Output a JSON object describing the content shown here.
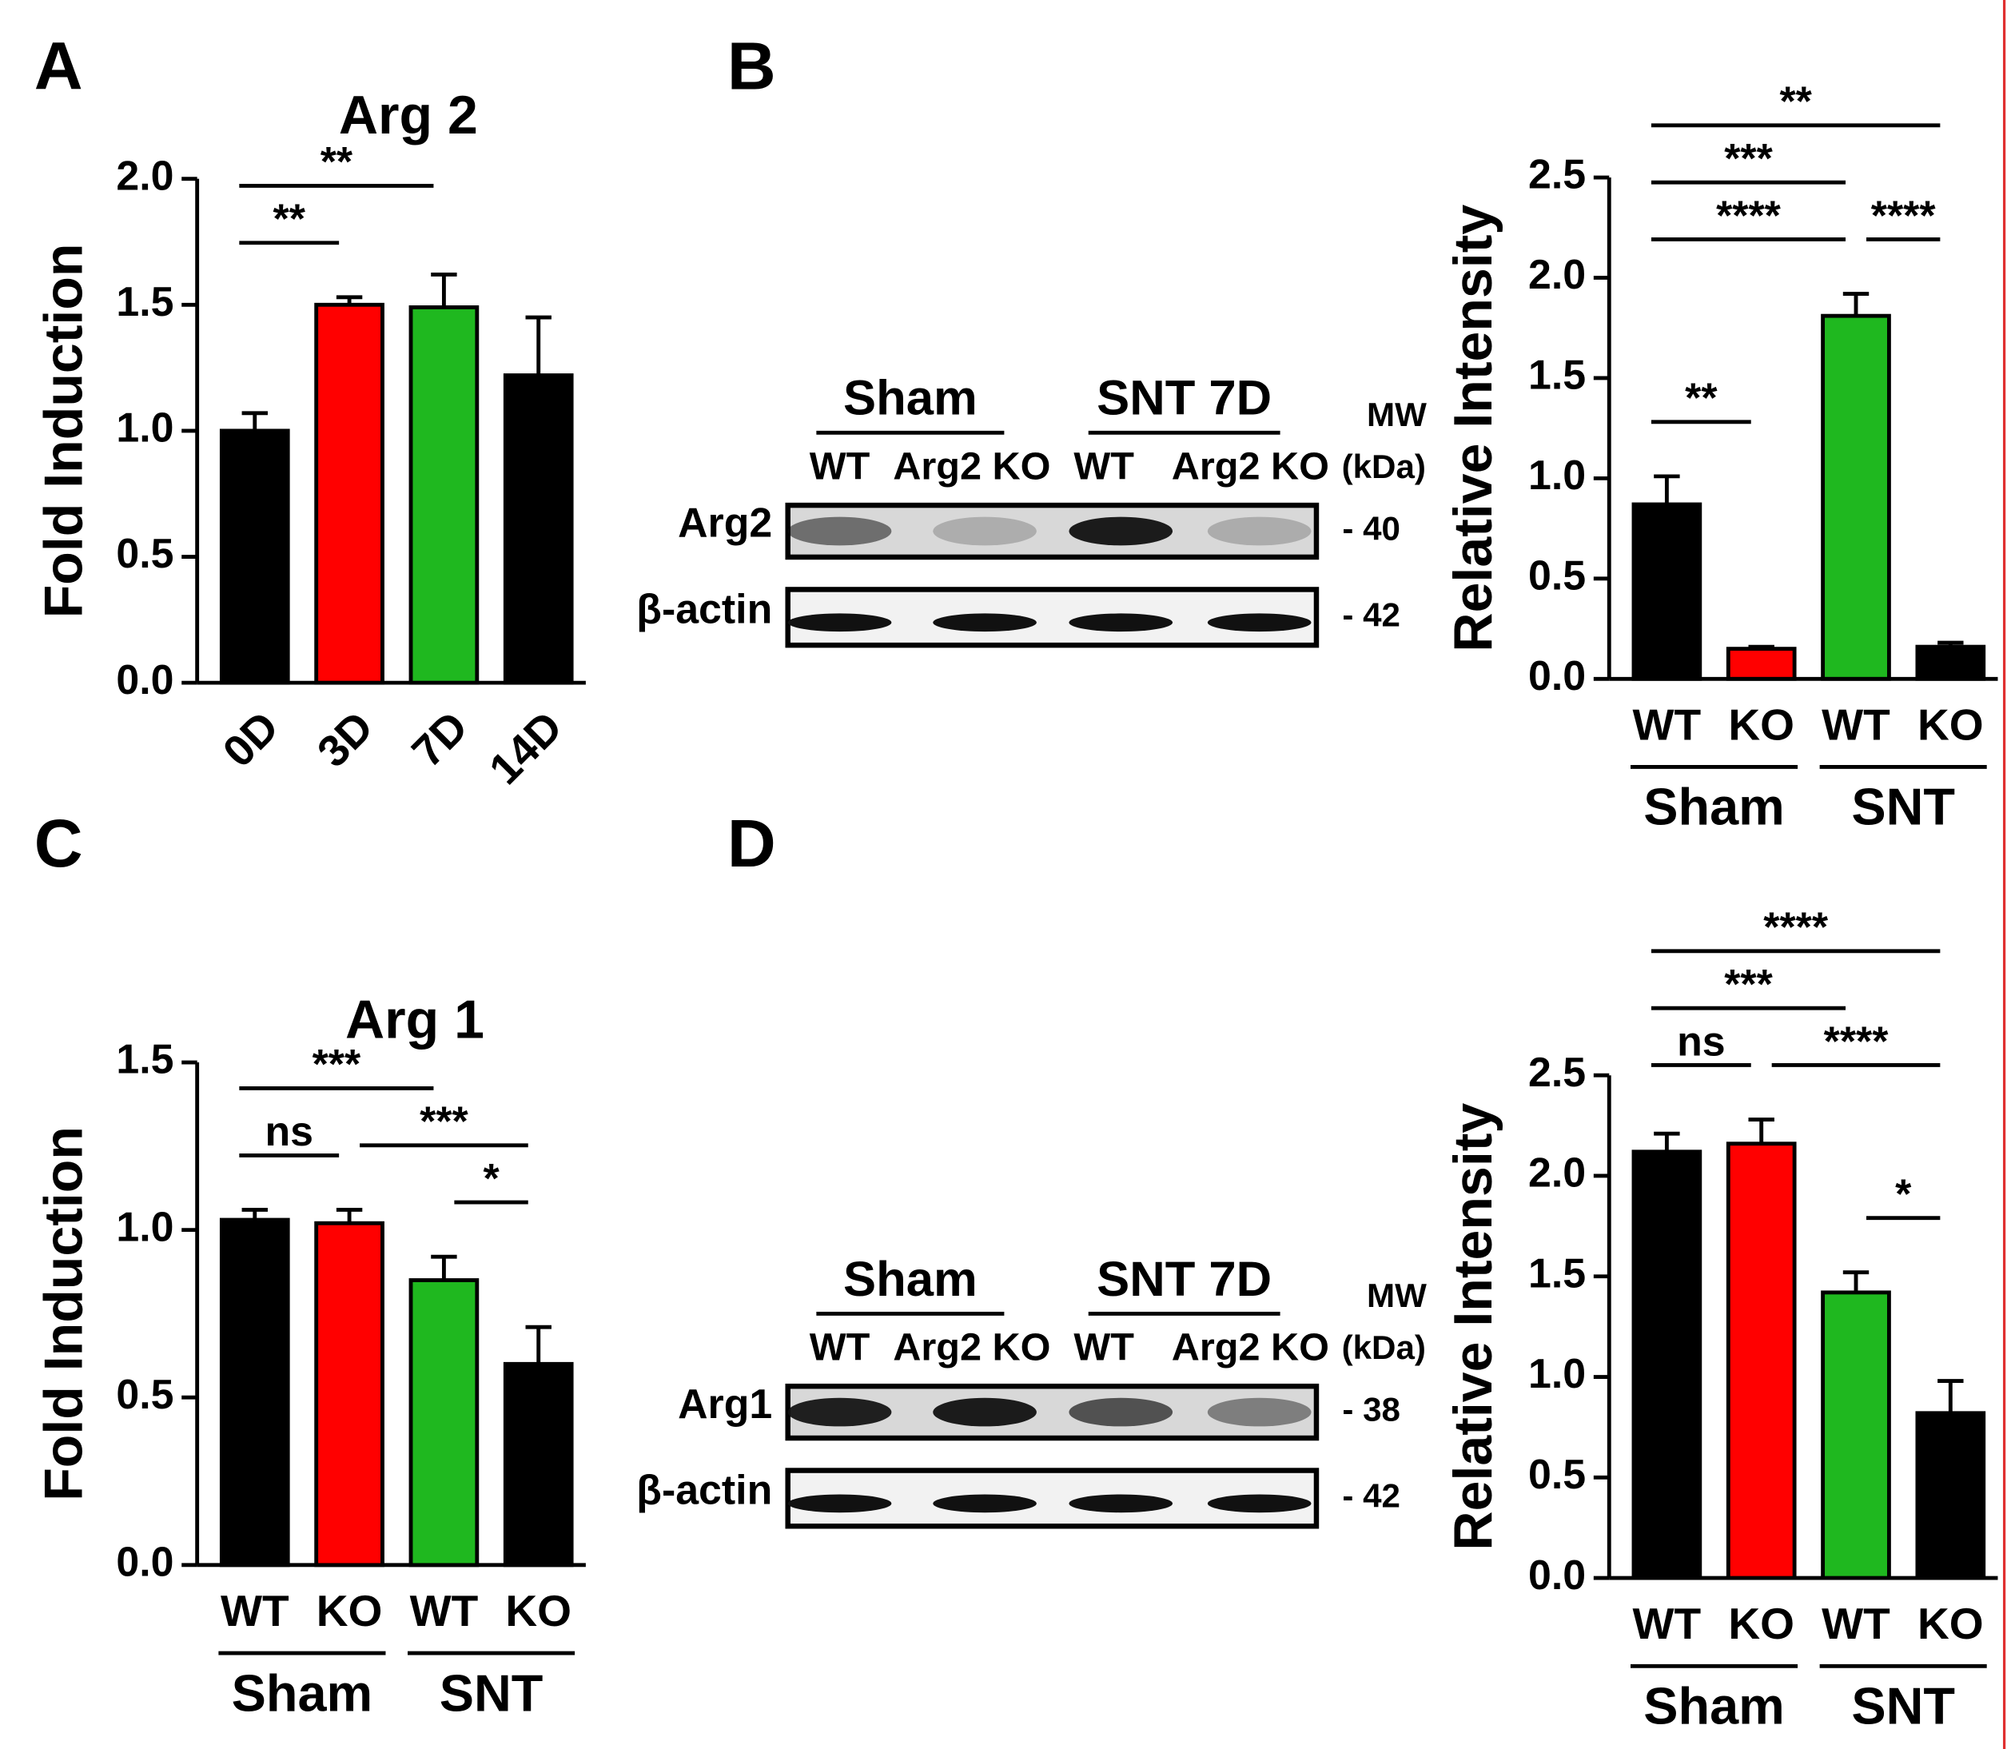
{
  "chart_data": [
    {
      "type": "bar",
      "panel": "A",
      "title": "Arg 2",
      "ylabel": "Fold Induction",
      "categories": [
        "0D",
        "3D",
        "7D",
        "14D"
      ],
      "xtick_rotation": -45,
      "values": [
        1.0,
        1.5,
        1.49,
        1.22
      ],
      "errors": [
        0.07,
        0.03,
        0.13,
        0.23
      ],
      "colors": [
        "#000000",
        "#ff0000",
        "#1fb81f",
        "#000000"
      ],
      "ylim": [
        0,
        2
      ],
      "yticks": [
        {
          "value": 0,
          "label": "0.0"
        },
        0.5,
        {
          "value": 1,
          "label": "1.0"
        },
        1.5,
        {
          "value": 2,
          "label": "2.0"
        }
      ],
      "comparisons": [
        {
          "label": "**",
          "bars": [
            0,
            1
          ]
        },
        {
          "label": "**",
          "bars": [
            0,
            2
          ]
        }
      ]
    },
    {
      "type": "bar",
      "panel": "B",
      "ylabel": "Relative Intensity",
      "categories": [
        "WT",
        "KO",
        "WT",
        "KO"
      ],
      "groups": [
        {
          "label": "Sham",
          "bars": [
            0,
            1
          ]
        },
        {
          "label": "SNT",
          "bars": [
            2,
            3
          ]
        }
      ],
      "values": [
        0.87,
        0.15,
        1.81,
        0.16
      ],
      "errors": [
        0.14,
        0.01,
        0.11,
        0.02
      ],
      "colors": [
        "#000000",
        "#ff0000",
        "#1fb81f",
        "#000000"
      ],
      "ylim": [
        0,
        2.5
      ],
      "yticks": [
        {
          "value": 0,
          "label": "0.0"
        },
        0.5,
        {
          "value": 1,
          "label": "1.0"
        },
        1.5,
        {
          "value": 2,
          "label": "2.0"
        },
        2.5
      ],
      "comparisons": [
        {
          "label": "**",
          "bars": [
            0,
            1
          ]
        },
        {
          "label": "****",
          "bars": [
            0,
            2
          ]
        },
        {
          "label": "****",
          "bars": [
            2,
            3
          ]
        },
        {
          "label": "***",
          "bars": [
            0,
            2
          ]
        },
        {
          "label": "**",
          "bars": [
            0,
            3
          ]
        }
      ],
      "blot": {
        "groups": [
          "Sham",
          "SNT 7D"
        ],
        "lanes": [
          "WT",
          "Arg2 KO",
          "WT",
          "Arg2 KO"
        ],
        "mw_header": [
          "MW",
          "(kDa)"
        ],
        "rows": [
          {
            "label": "Arg2",
            "mw": "- 40"
          },
          {
            "label": "β-actin",
            "mw": "- 42"
          }
        ]
      }
    },
    {
      "type": "bar",
      "panel": "C",
      "title": "Arg 1",
      "ylabel": "Fold Induction",
      "categories": [
        "WT",
        "KO",
        "WT",
        "KO"
      ],
      "groups": [
        {
          "label": "Sham",
          "bars": [
            0,
            1
          ]
        },
        {
          "label": "SNT",
          "bars": [
            2,
            3
          ]
        }
      ],
      "values": [
        1.03,
        1.02,
        0.85,
        0.6
      ],
      "errors": [
        0.03,
        0.04,
        0.07,
        0.11
      ],
      "colors": [
        "#000000",
        "#ff0000",
        "#1fb81f",
        "#000000"
      ],
      "ylim": [
        0,
        1.5
      ],
      "yticks": [
        {
          "value": 0,
          "label": "0.0"
        },
        0.5,
        {
          "value": 1,
          "label": "1.0"
        },
        1.5
      ],
      "comparisons": [
        {
          "label": "ns",
          "bars": [
            0,
            1
          ]
        },
        {
          "label": "*",
          "bars": [
            2,
            3
          ]
        },
        {
          "label": "***",
          "bars": [
            1,
            3
          ]
        },
        {
          "label": "***",
          "bars": [
            0,
            2
          ]
        }
      ]
    },
    {
      "type": "bar",
      "panel": "D",
      "ylabel": "Relative Intensity",
      "categories": [
        "WT",
        "KO",
        "WT",
        "KO"
      ],
      "groups": [
        {
          "label": "Sham",
          "bars": [
            0,
            1
          ]
        },
        {
          "label": "SNT",
          "bars": [
            2,
            3
          ]
        }
      ],
      "values": [
        2.12,
        2.16,
        1.42,
        0.82
      ],
      "errors": [
        0.09,
        0.12,
        0.1,
        0.16
      ],
      "colors": [
        "#000000",
        "#ff0000",
        "#1fb81f",
        "#000000"
      ],
      "ylim": [
        0,
        2.5
      ],
      "yticks": [
        {
          "value": 0,
          "label": "0.0"
        },
        0.5,
        {
          "value": 1,
          "label": "1.0"
        },
        1.5,
        {
          "value": 2,
          "label": "2.0"
        },
        2.5
      ],
      "comparisons": [
        {
          "label": "*",
          "bars": [
            2,
            3
          ]
        },
        {
          "label": "ns",
          "bars": [
            0,
            1
          ]
        },
        {
          "label": "****",
          "bars": [
            1,
            3
          ]
        },
        {
          "label": "***",
          "bars": [
            0,
            2
          ]
        },
        {
          "label": "****",
          "bars": [
            0,
            3
          ]
        }
      ],
      "blot": {
        "groups": [
          "Sham",
          "SNT 7D"
        ],
        "lanes": [
          "WT",
          "Arg2 KO",
          "WT",
          "Arg2 KO"
        ],
        "mw_header": [
          "MW",
          "(kDa)"
        ],
        "rows": [
          {
            "label": "Arg1",
            "mw": "- 38"
          },
          {
            "label": "β-actin",
            "mw": "- 42"
          }
        ]
      }
    }
  ]
}
